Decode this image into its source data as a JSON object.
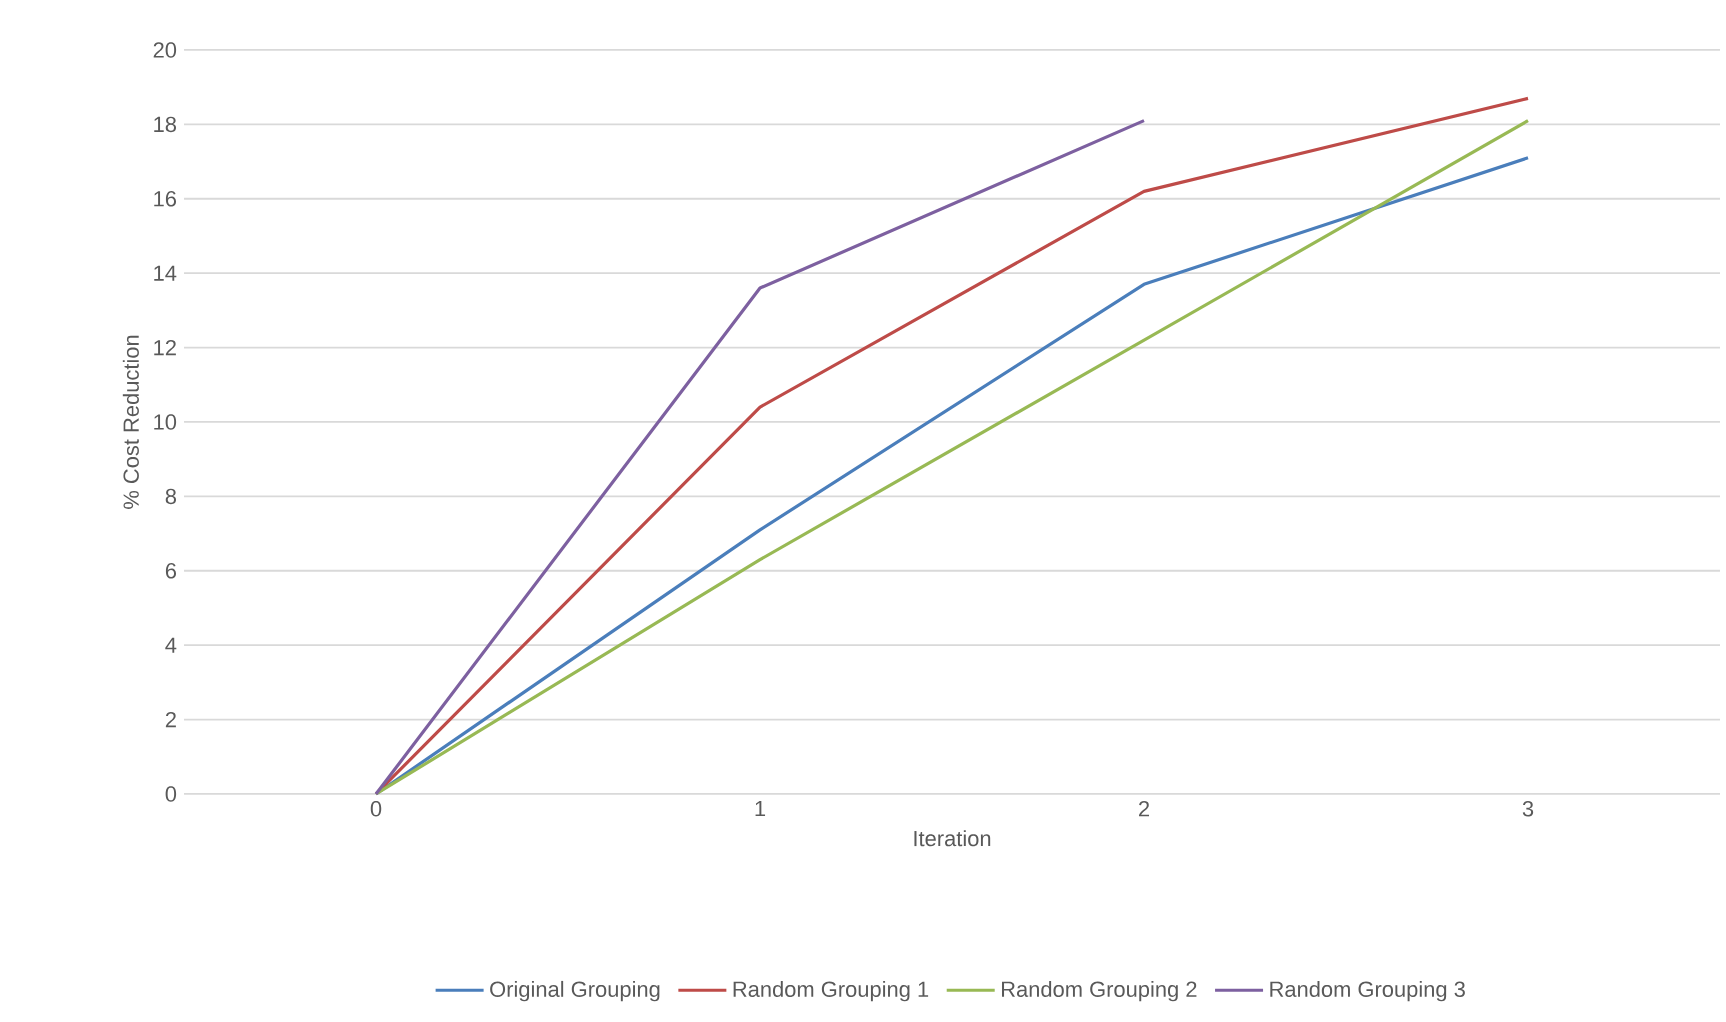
{
  "chart_data": {
    "type": "line",
    "xlabel": "Iteration",
    "ylabel": "% Cost Reduction",
    "categories": [
      "0",
      "1",
      "2",
      "3"
    ],
    "series": [
      {
        "name": "Original Grouping",
        "color": "#4a7ebb",
        "values": [
          0,
          7.1,
          13.7,
          17.1
        ]
      },
      {
        "name": "Random Grouping 1",
        "color": "#be4b48",
        "values": [
          0,
          10.4,
          16.2,
          18.7
        ]
      },
      {
        "name": "Random Grouping 2",
        "color": "#98b954",
        "values": [
          0,
          6.3,
          12.2,
          18.1
        ]
      },
      {
        "name": "Random Grouping 3",
        "color": "#7d60a0",
        "values": [
          0,
          13.6,
          18.1,
          null
        ]
      }
    ],
    "ylim": [
      0,
      20
    ],
    "yticks": [
      0,
      2,
      4,
      6,
      8,
      10,
      12,
      14,
      16,
      18,
      20
    ],
    "grid": "y",
    "legend": "bottom",
    "marker": "none",
    "line_style": "solid"
  }
}
